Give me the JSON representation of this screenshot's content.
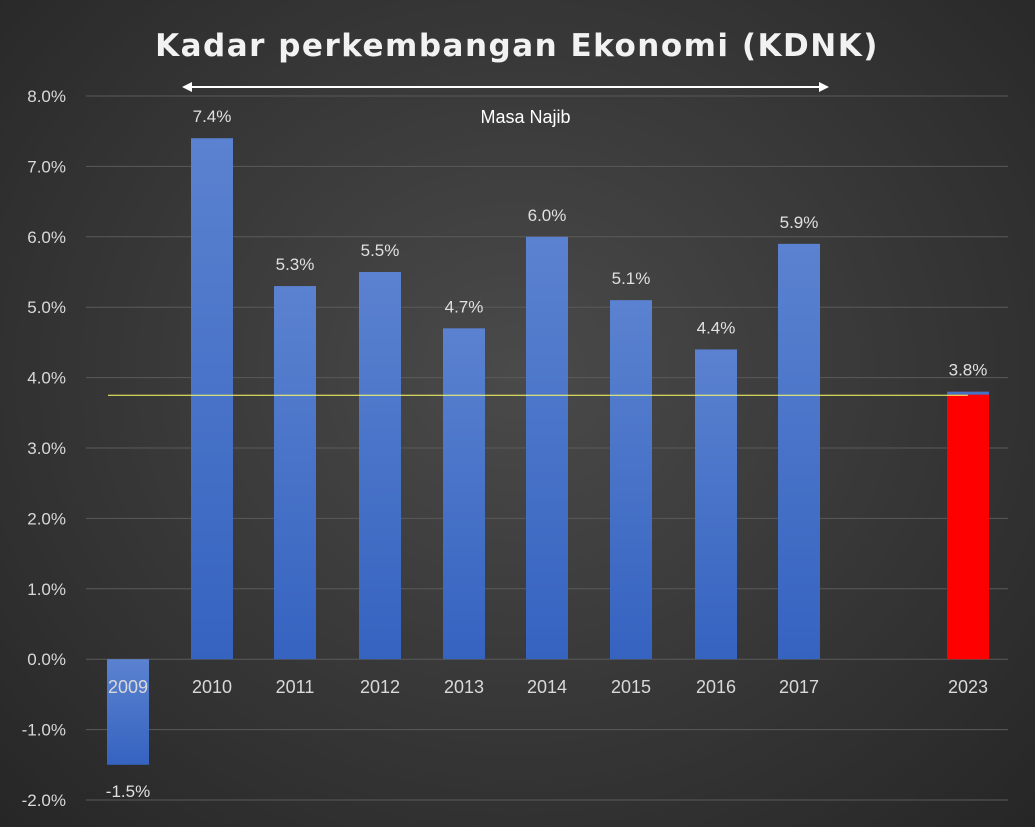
{
  "chart_data": {
    "type": "bar",
    "title": "Kadar perkembangan Ekonomi (KDNK)",
    "xlabel": "",
    "ylabel": "",
    "categories": [
      "2009",
      "2010",
      "2011",
      "2012",
      "2013",
      "2014",
      "2015",
      "2016",
      "2017",
      "2023"
    ],
    "values": [
      -1.5,
      7.4,
      5.3,
      5.5,
      4.7,
      6.0,
      5.1,
      4.4,
      5.9,
      3.8
    ],
    "data_labels": [
      "-1.5%",
      "7.4%",
      "5.3%",
      "5.5%",
      "4.7%",
      "6.0%",
      "5.1%",
      "4.4%",
      "5.9%",
      "3.8%"
    ],
    "ylim": [
      -2.0,
      8.0
    ],
    "y_ticks": [
      "-2.0%",
      "-1.0%",
      "0.0%",
      "1.0%",
      "2.0%",
      "3.0%",
      "4.0%",
      "5.0%",
      "6.0%",
      "7.0%",
      "8.0%"
    ],
    "grid": true,
    "bar_color": "#4472c4",
    "highlight_category": "2023",
    "highlight_color": "#ff0000",
    "reference_line": {
      "value": 3.75,
      "color": "#ffff66"
    },
    "annotation": {
      "text": "Masa Najib",
      "from": "2010",
      "to": "2017",
      "color": "#ffffff"
    }
  }
}
